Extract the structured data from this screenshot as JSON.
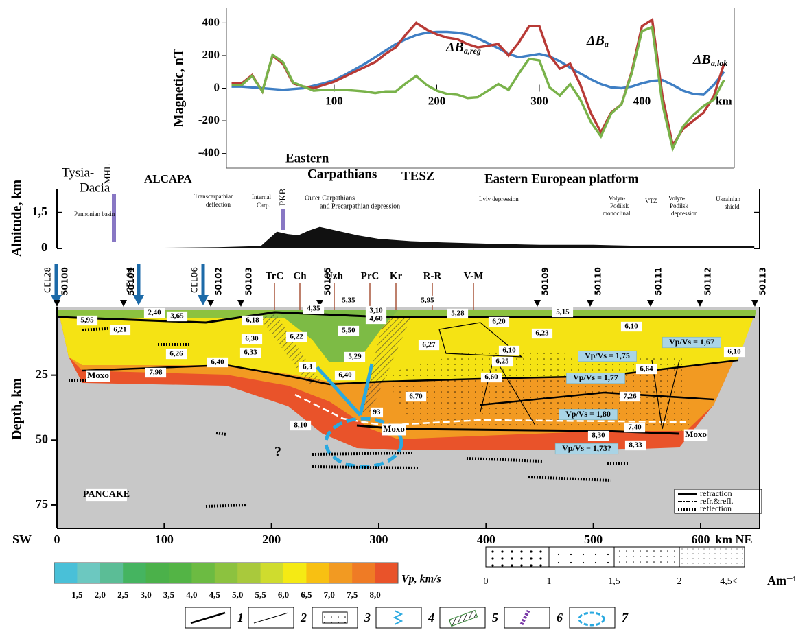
{
  "chart_data": [
    {
      "type": "line",
      "ylabel": "Magnetic, nT",
      "xunit": "km",
      "x": [
        0,
        10,
        20,
        30,
        40,
        50,
        60,
        70,
        80,
        90,
        100,
        110,
        120,
        130,
        140,
        150,
        160,
        170,
        180,
        190,
        200,
        210,
        220,
        230,
        240,
        250,
        260,
        270,
        280,
        290,
        300,
        310,
        320,
        330,
        340,
        350,
        360,
        370,
        380,
        390,
        400,
        410,
        420,
        430,
        440,
        450,
        460,
        470,
        480
      ],
      "series": [
        {
          "name": "ΔBa,reg",
          "color": "#3f7fc4",
          "values": [
            10,
            10,
            5,
            0,
            -5,
            -10,
            -5,
            0,
            15,
            30,
            50,
            80,
            115,
            150,
            190,
            230,
            270,
            300,
            325,
            340,
            345,
            345,
            340,
            330,
            305,
            275,
            245,
            210,
            190,
            200,
            210,
            195,
            165,
            125,
            90,
            55,
            25,
            5,
            0,
            10,
            30,
            45,
            50,
            20,
            -15,
            -35,
            -40,
            20,
            100
          ]
        },
        {
          "name": "ΔBa",
          "color": "#b83a36",
          "values": [
            30,
            30,
            80,
            -20,
            200,
            150,
            30,
            10,
            0,
            20,
            40,
            70,
            100,
            130,
            160,
            210,
            250,
            330,
            400,
            360,
            330,
            310,
            300,
            270,
            250,
            260,
            270,
            200,
            280,
            380,
            380,
            200,
            120,
            150,
            20,
            -150,
            -270,
            -150,
            -100,
            100,
            380,
            420,
            -50,
            -350,
            -250,
            -200,
            -150,
            -50,
            150
          ]
        },
        {
          "name": "ΔBa,lok",
          "color": "#79b24a",
          "values": [
            20,
            20,
            75,
            -20,
            205,
            160,
            35,
            10,
            -15,
            -10,
            -10,
            -10,
            -15,
            -20,
            -30,
            -20,
            -20,
            30,
            75,
            20,
            -15,
            -35,
            -40,
            -60,
            -55,
            -15,
            25,
            -10,
            90,
            180,
            170,
            5,
            -45,
            25,
            -70,
            -205,
            -295,
            -155,
            -100,
            90,
            350,
            375,
            -100,
            -370,
            -235,
            -165,
            -110,
            -70,
            50
          ]
        }
      ],
      "xlim": [
        -5,
        490
      ],
      "ylim": [
        -490,
        490
      ],
      "xticks": [
        100,
        200,
        300,
        400
      ],
      "yticks": [
        -400,
        -200,
        0,
        200,
        400
      ]
    },
    {
      "type": "area",
      "ylabel": "Alnitude, km",
      "color": "#111111",
      "x": [
        0,
        50,
        100,
        150,
        190,
        200,
        205,
        215,
        225,
        235,
        245,
        255,
        265,
        280,
        300,
        330,
        360,
        400,
        450,
        500,
        550,
        600,
        650
      ],
      "values": [
        0.02,
        0.02,
        0.03,
        0.05,
        0.1,
        0.5,
        0.7,
        0.6,
        0.55,
        0.75,
        0.9,
        0.8,
        0.7,
        0.55,
        0.4,
        0.3,
        0.25,
        0.2,
        0.15,
        0.15,
        0.1,
        0.1,
        0.1
      ],
      "xlim": [
        0,
        655
      ],
      "ylim": [
        0,
        2.5
      ],
      "yticks": [
        0,
        {
          "value": 1.5,
          "label": "1,5"
        }
      ]
    }
  ],
  "region_labels": [
    "Tysia-",
    "Dacia",
    "MHL",
    "ALCAPA",
    "Pannonian basin",
    "Transcarpathian",
    "deflection",
    "Internal",
    "Carp.",
    "PKB",
    "Eastern",
    "Carpathians",
    "Outer Carpathians",
    "and Precarpathian depression",
    "TESZ",
    "Eastern European platform",
    "Lviv depression",
    "Volyn-",
    "Podilsk",
    "monoclinal",
    "VTZ",
    "Volyn-",
    "Podilsk",
    "depression",
    "Ukrainian",
    "shield"
  ],
  "section": {
    "ylabel": "Depth, km",
    "xlim": [
      0,
      655
    ],
    "ylim": [
      0,
      84
    ],
    "xticks": [
      0,
      100,
      200,
      300,
      400,
      500,
      600
    ],
    "yticks": [
      25,
      50,
      75
    ],
    "left_label": "SW",
    "right_label": "km NE",
    "cel_stations": [
      "CEL28",
      "CEL04",
      "CEL06"
    ],
    "shots": [
      "50100",
      "50101",
      "50102",
      "50103",
      "50105",
      "50109",
      "50110",
      "50111",
      "50112",
      "50113"
    ],
    "sites": [
      "TrC",
      "Ch",
      "Uzh",
      "PrC",
      "Kr",
      "R-R",
      "V-M"
    ],
    "velocities": [
      "2,40",
      "3,65",
      "5,95",
      "6,21",
      "6,18",
      "6,30",
      "6,22",
      "4,35",
      "5,35",
      "3,10",
      "4,60",
      "5,95",
      "5,28",
      "5,15",
      "6,20",
      "5,50",
      "6,23",
      "6,10",
      "6,27",
      "6,26",
      "6,33",
      "6,40",
      "5,29",
      "6,10",
      "6,10",
      "6,3",
      "6,40",
      "6,25",
      "6,64",
      "6,60",
      "7,98",
      "6,70",
      "7,26",
      "8,10",
      "93",
      "7,40",
      "8,30",
      "8,33"
    ],
    "ratios": [
      "Vp/Vs = 1,67",
      "Vp/Vs = 1,75",
      "Vp/Vs = 1,77",
      "Vp/Vs = 1,80",
      "Vp/Vs = 1,73?"
    ],
    "moho": [
      "Moxo",
      "Moxo",
      "Moxo"
    ],
    "question": "?",
    "model": "PANCAKE",
    "legend": [
      "refraction",
      "refr.&refl.",
      "reflection"
    ]
  },
  "colorbar": {
    "colors": [
      "#49c0d8",
      "#6cc8c0",
      "#5bbd96",
      "#45b460",
      "#4bb14a",
      "#53b445",
      "#6cbb42",
      "#8cc23f",
      "#a9c93c",
      "#cfdc2e",
      "#f5ea14",
      "#f8c012",
      "#f29a22",
      "#ef7b25",
      "#e9532a"
    ],
    "labels": [
      "1,5",
      "2,0",
      "2,5",
      "3,0",
      "3,5",
      "4,0",
      "4,5",
      "5,0",
      "5,5",
      "6,0",
      "6,5",
      "7,0",
      "7,5",
      "8,0"
    ],
    "unit": "Vp, km/s"
  },
  "magnetization": {
    "labels": [
      "0",
      "1",
      "1,5",
      "2",
      "4,5<"
    ],
    "unit": "Am⁻¹"
  },
  "legend_numbers": [
    "1",
    "2",
    "3",
    "4",
    "5",
    "6",
    "7"
  ]
}
